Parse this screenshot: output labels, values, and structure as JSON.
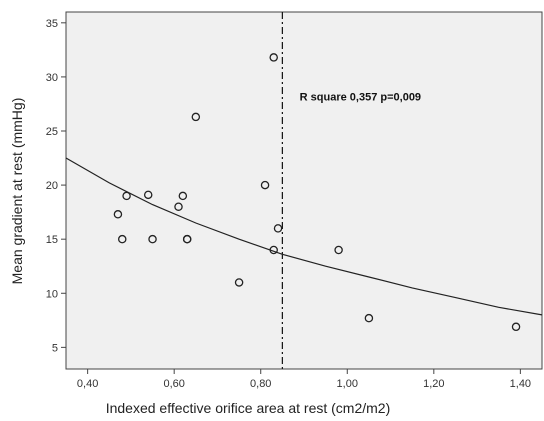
{
  "chart_data": {
    "type": "scatter",
    "title": "",
    "xlabel": "Indexed effective orifice area at rest (cm2/m2)",
    "ylabel": "Mean gradient at rest (mmHg)",
    "xlim": [
      0.35,
      1.45
    ],
    "ylim": [
      3,
      36
    ],
    "x_ticks": [
      0.4,
      0.6,
      0.8,
      1.0,
      1.2,
      1.4
    ],
    "x_tick_labels": [
      "0,40",
      "0,60",
      "0,80",
      "1,00",
      "1,20",
      "1,40"
    ],
    "y_ticks": [
      5,
      10,
      15,
      20,
      25,
      30,
      35
    ],
    "y_tick_labels": [
      "5",
      "10",
      "15",
      "20",
      "25",
      "30",
      "35"
    ],
    "grid": false,
    "colors": {
      "plot_background": "#f0f0f0",
      "points": "#222222",
      "curve": "#222222"
    },
    "points": [
      {
        "x": 0.47,
        "y": 17.3
      },
      {
        "x": 0.48,
        "y": 15.0
      },
      {
        "x": 0.49,
        "y": 19.0
      },
      {
        "x": 0.54,
        "y": 19.1
      },
      {
        "x": 0.55,
        "y": 15.0
      },
      {
        "x": 0.61,
        "y": 18.0
      },
      {
        "x": 0.62,
        "y": 19.0
      },
      {
        "x": 0.63,
        "y": 15.0
      },
      {
        "x": 0.63,
        "y": 15.0
      },
      {
        "x": 0.65,
        "y": 26.3
      },
      {
        "x": 0.75,
        "y": 11.0
      },
      {
        "x": 0.81,
        "y": 20.0
      },
      {
        "x": 0.83,
        "y": 31.8
      },
      {
        "x": 0.83,
        "y": 14.0
      },
      {
        "x": 0.84,
        "y": 16.0
      },
      {
        "x": 0.98,
        "y": 14.0
      },
      {
        "x": 1.05,
        "y": 7.7
      },
      {
        "x": 1.39,
        "y": 6.9
      }
    ],
    "fit_curve": [
      {
        "x": 0.35,
        "y": 22.5
      },
      {
        "x": 0.45,
        "y": 20.2
      },
      {
        "x": 0.55,
        "y": 18.2
      },
      {
        "x": 0.65,
        "y": 16.5
      },
      {
        "x": 0.75,
        "y": 15.0
      },
      {
        "x": 0.85,
        "y": 13.6
      },
      {
        "x": 0.95,
        "y": 12.5
      },
      {
        "x": 1.05,
        "y": 11.5
      },
      {
        "x": 1.15,
        "y": 10.5
      },
      {
        "x": 1.25,
        "y": 9.6
      },
      {
        "x": 1.35,
        "y": 8.7
      },
      {
        "x": 1.45,
        "y": 8.0
      }
    ],
    "reference_line": {
      "orientation": "vertical",
      "x": 0.85,
      "style": "dash-dot"
    },
    "annotation": {
      "text": "R square 0,357 p=0,009",
      "x": 0.89,
      "y": 27.8
    }
  }
}
